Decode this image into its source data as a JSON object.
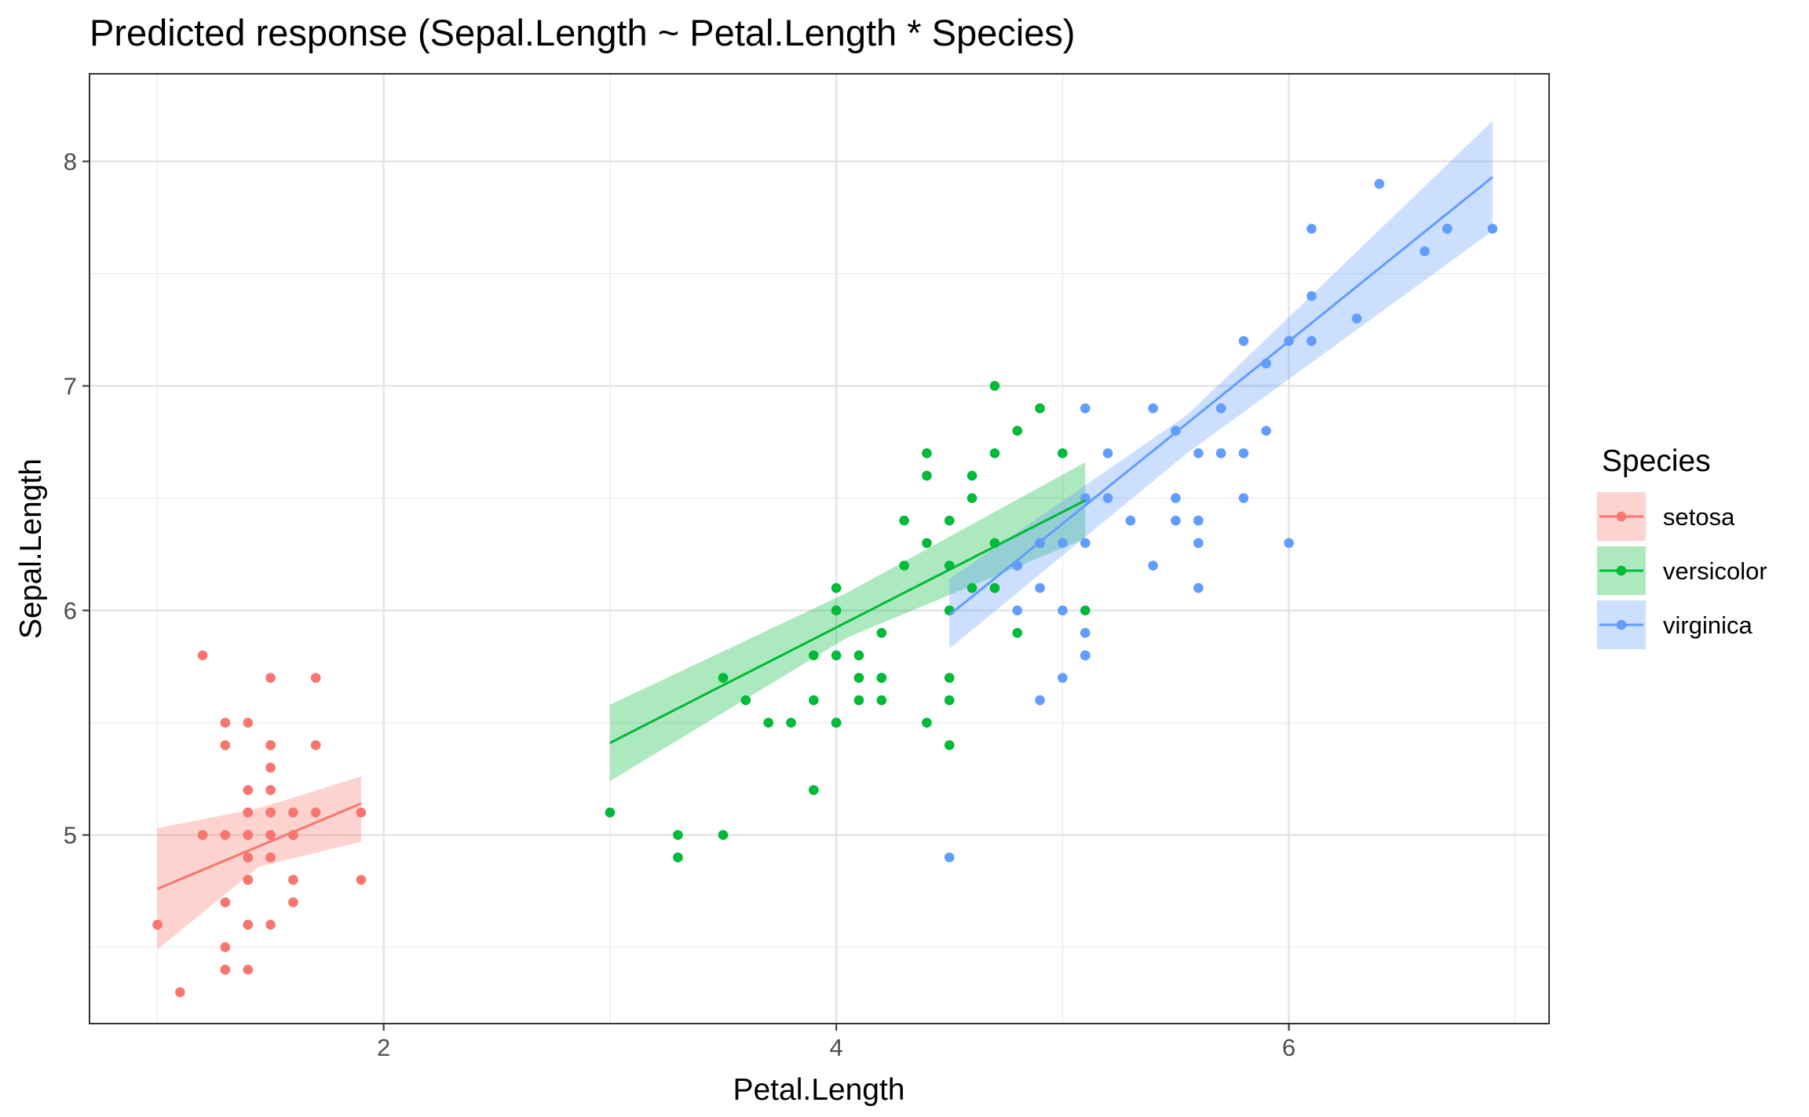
{
  "chart_data": {
    "type": "scatter",
    "title": "Predicted response (Sepal.Length ~ Petal.Length * Species)",
    "xlabel": "Petal.Length",
    "ylabel": "Sepal.Length",
    "xlim": [
      0.7,
      7.15
    ],
    "ylim": [
      4.16,
      8.39
    ],
    "x_ticks": [
      2,
      4,
      6
    ],
    "x_tick_labels": [
      "2",
      "4",
      "6"
    ],
    "y_ticks": [
      5,
      6,
      7,
      8
    ],
    "y_tick_labels": [
      "5",
      "6",
      "7",
      "8"
    ],
    "grid": true,
    "legend": {
      "title": "Species",
      "placement": "right"
    },
    "series": [
      {
        "name": "setosa",
        "color": "#F8766D",
        "points": [
          [
            1.4,
            5.1
          ],
          [
            1.4,
            4.9
          ],
          [
            1.3,
            4.7
          ],
          [
            1.5,
            4.6
          ],
          [
            1.4,
            5.0
          ],
          [
            1.7,
            5.4
          ],
          [
            1.4,
            4.6
          ],
          [
            1.5,
            5.0
          ],
          [
            1.4,
            4.4
          ],
          [
            1.5,
            4.9
          ],
          [
            1.5,
            5.4
          ],
          [
            1.6,
            4.8
          ],
          [
            1.4,
            4.8
          ],
          [
            1.1,
            4.3
          ],
          [
            1.2,
            5.8
          ],
          [
            1.5,
            5.7
          ],
          [
            1.3,
            5.4
          ],
          [
            1.4,
            5.1
          ],
          [
            1.7,
            5.7
          ],
          [
            1.5,
            5.1
          ],
          [
            1.7,
            5.4
          ],
          [
            1.5,
            5.1
          ],
          [
            1.0,
            4.6
          ],
          [
            1.7,
            5.1
          ],
          [
            1.9,
            4.8
          ],
          [
            1.6,
            5.0
          ],
          [
            1.6,
            5.0
          ],
          [
            1.5,
            5.2
          ],
          [
            1.4,
            5.2
          ],
          [
            1.6,
            4.7
          ],
          [
            1.6,
            4.8
          ],
          [
            1.5,
            5.4
          ],
          [
            1.5,
            5.2
          ],
          [
            1.4,
            5.5
          ],
          [
            1.5,
            4.9
          ],
          [
            1.2,
            5.0
          ],
          [
            1.3,
            5.5
          ],
          [
            1.4,
            4.9
          ],
          [
            1.3,
            4.4
          ],
          [
            1.5,
            5.1
          ],
          [
            1.3,
            5.0
          ],
          [
            1.3,
            4.5
          ],
          [
            1.3,
            4.4
          ],
          [
            1.6,
            5.0
          ],
          [
            1.9,
            5.1
          ],
          [
            1.4,
            4.8
          ],
          [
            1.6,
            5.1
          ],
          [
            1.4,
            4.6
          ],
          [
            1.5,
            5.3
          ],
          [
            1.4,
            5.0
          ]
        ],
        "fit": {
          "x": [
            1.0,
            1.9
          ],
          "y": [
            4.76,
            5.14
          ]
        },
        "band": {
          "x": [
            1.0,
            1.45,
            1.9
          ],
          "lower": [
            4.49,
            4.86,
            4.97
          ],
          "upper": [
            5.03,
            5.12,
            5.26
          ]
        }
      },
      {
        "name": "versicolor",
        "color": "#00BA38",
        "points": [
          [
            4.7,
            7.0
          ],
          [
            4.5,
            6.4
          ],
          [
            4.9,
            6.9
          ],
          [
            4.0,
            5.5
          ],
          [
            4.6,
            6.5
          ],
          [
            4.5,
            5.7
          ],
          [
            4.7,
            6.3
          ],
          [
            3.3,
            4.9
          ],
          [
            4.6,
            6.6
          ],
          [
            3.9,
            5.2
          ],
          [
            3.5,
            5.0
          ],
          [
            4.2,
            5.9
          ],
          [
            4.0,
            6.0
          ],
          [
            4.7,
            6.1
          ],
          [
            3.6,
            5.6
          ],
          [
            4.4,
            6.7
          ],
          [
            4.5,
            5.6
          ],
          [
            4.1,
            5.8
          ],
          [
            4.5,
            6.2
          ],
          [
            3.9,
            5.6
          ],
          [
            4.8,
            5.9
          ],
          [
            4.0,
            6.1
          ],
          [
            4.9,
            6.3
          ],
          [
            4.7,
            6.1
          ],
          [
            4.3,
            6.4
          ],
          [
            4.4,
            6.6
          ],
          [
            4.8,
            6.8
          ],
          [
            5.0,
            6.7
          ],
          [
            4.5,
            6.0
          ],
          [
            3.5,
            5.7
          ],
          [
            3.8,
            5.5
          ],
          [
            3.7,
            5.5
          ],
          [
            3.9,
            5.8
          ],
          [
            5.1,
            6.0
          ],
          [
            4.5,
            5.4
          ],
          [
            4.5,
            6.0
          ],
          [
            4.7,
            6.7
          ],
          [
            4.4,
            6.3
          ],
          [
            4.1,
            5.6
          ],
          [
            4.0,
            5.5
          ],
          [
            4.4,
            5.5
          ],
          [
            4.6,
            6.1
          ],
          [
            4.0,
            5.8
          ],
          [
            3.3,
            5.0
          ],
          [
            4.2,
            5.6
          ],
          [
            4.2,
            5.7
          ],
          [
            4.2,
            5.7
          ],
          [
            4.3,
            6.2
          ],
          [
            3.0,
            5.1
          ],
          [
            4.1,
            5.7
          ]
        ],
        "fit": {
          "x": [
            3.0,
            5.1
          ],
          "y": [
            5.41,
            6.49
          ]
        },
        "band": {
          "x": [
            3.0,
            4.05,
            5.1
          ],
          "lower": [
            5.24,
            5.88,
            6.32
          ],
          "upper": [
            5.58,
            6.08,
            6.66
          ]
        }
      },
      {
        "name": "virginica",
        "color": "#619CFF",
        "points": [
          [
            6.0,
            6.3
          ],
          [
            5.1,
            5.8
          ],
          [
            5.9,
            7.1
          ],
          [
            5.6,
            6.3
          ],
          [
            5.8,
            6.5
          ],
          [
            6.6,
            7.6
          ],
          [
            4.5,
            4.9
          ],
          [
            6.3,
            7.3
          ],
          [
            5.8,
            6.7
          ],
          [
            6.1,
            7.2
          ],
          [
            5.1,
            6.5
          ],
          [
            5.3,
            6.4
          ],
          [
            5.5,
            6.8
          ],
          [
            5.0,
            5.7
          ],
          [
            5.1,
            5.8
          ],
          [
            5.3,
            6.4
          ],
          [
            5.5,
            6.5
          ],
          [
            6.7,
            7.7
          ],
          [
            6.9,
            7.7
          ],
          [
            5.0,
            6.0
          ],
          [
            5.7,
            6.9
          ],
          [
            4.9,
            5.6
          ],
          [
            6.7,
            7.7
          ],
          [
            4.9,
            6.3
          ],
          [
            5.7,
            6.7
          ],
          [
            6.0,
            7.2
          ],
          [
            4.8,
            6.2
          ],
          [
            4.9,
            6.1
          ],
          [
            5.6,
            6.4
          ],
          [
            5.8,
            7.2
          ],
          [
            6.1,
            7.4
          ],
          [
            6.4,
            7.9
          ],
          [
            5.6,
            6.4
          ],
          [
            5.1,
            6.3
          ],
          [
            5.6,
            6.1
          ],
          [
            6.1,
            7.7
          ],
          [
            5.6,
            6.3
          ],
          [
            5.5,
            6.4
          ],
          [
            4.8,
            6.0
          ],
          [
            5.4,
            6.9
          ],
          [
            5.6,
            6.7
          ],
          [
            5.1,
            6.9
          ],
          [
            5.1,
            5.8
          ],
          [
            5.9,
            6.8
          ],
          [
            5.7,
            6.7
          ],
          [
            5.2,
            6.7
          ],
          [
            5.0,
            6.3
          ],
          [
            5.2,
            6.5
          ],
          [
            5.4,
            6.2
          ],
          [
            5.1,
            5.9
          ]
        ],
        "fit": {
          "x": [
            4.5,
            6.9
          ],
          "y": [
            5.98,
            7.93
          ]
        },
        "band": {
          "x": [
            4.5,
            5.55,
            6.9
          ],
          "lower": [
            5.83,
            6.7,
            7.69
          ],
          "upper": [
            6.14,
            6.87,
            8.18
          ]
        }
      }
    ]
  }
}
